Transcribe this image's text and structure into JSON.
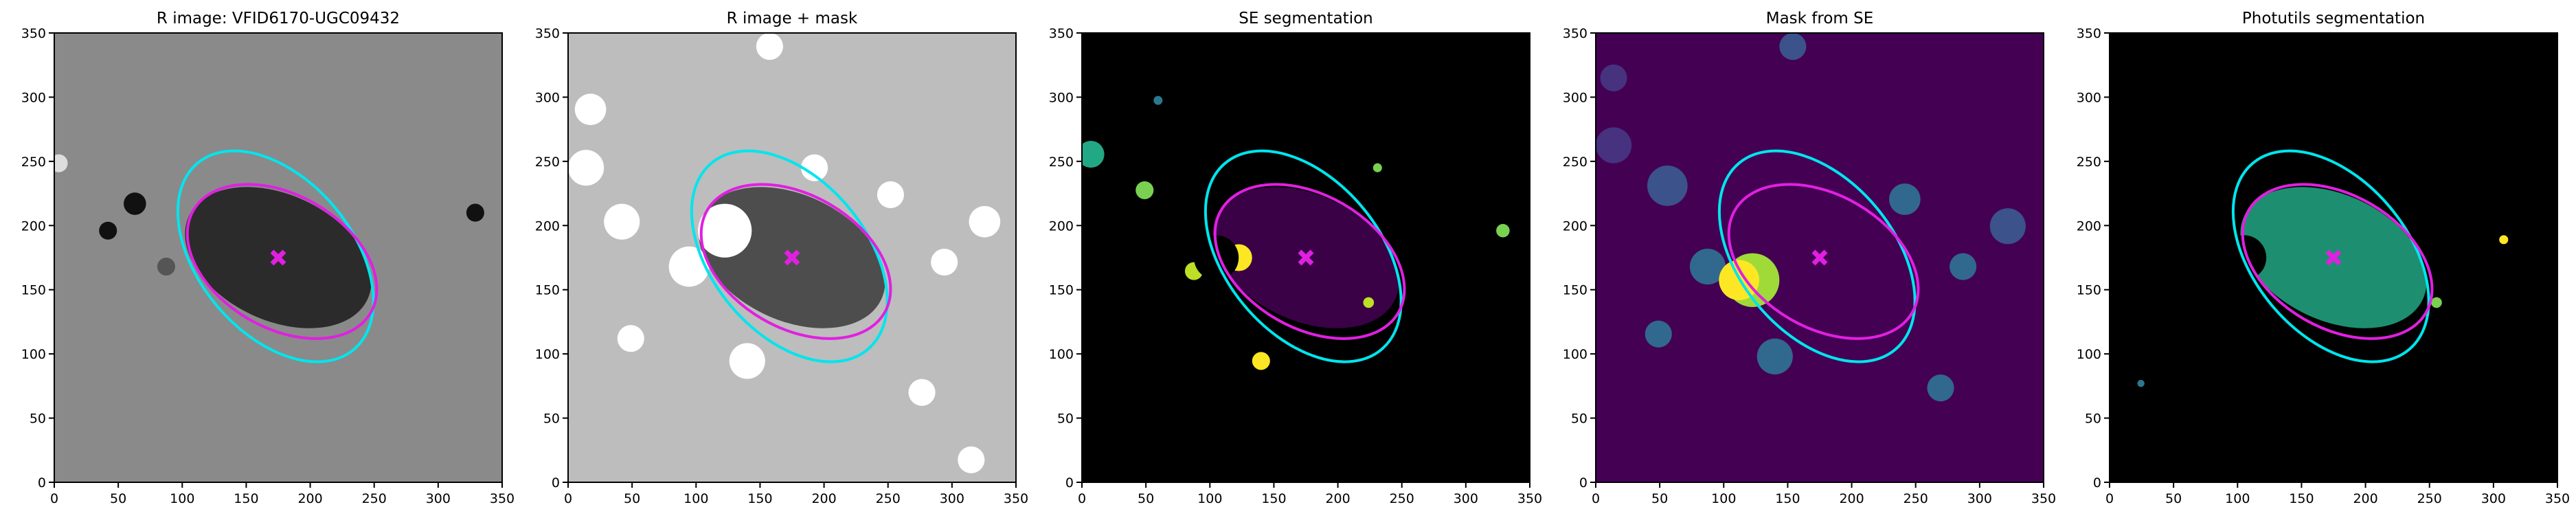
{
  "chart_data": [
    {
      "type": "image",
      "title": "R image: VFID6170-UGC09432",
      "background": "#8a8a8a",
      "galaxy": "#1a1a1a",
      "xlim": [
        0,
        350
      ],
      "ylim": [
        0,
        350
      ],
      "xticks": [
        0,
        50,
        100,
        150,
        200,
        250,
        300,
        350
      ],
      "yticks": [
        0,
        50,
        100,
        150,
        200,
        250,
        300,
        350
      ],
      "ellipses": [
        {
          "color": "#00e5ee",
          "cx": 173,
          "cy": 176,
          "a": 95,
          "b": 60,
          "angle": -50
        },
        {
          "color": "#e020e0",
          "cx": 178,
          "cy": 172,
          "a": 80,
          "b": 52,
          "angle": -30
        }
      ],
      "center": {
        "x": 175,
        "y": 175,
        "color": "#e020e0"
      }
    },
    {
      "type": "image",
      "title": "R image + mask",
      "background": "#bdbdbd",
      "galaxy": "#3a3a3a",
      "xlim": [
        0,
        350
      ],
      "ylim": [
        0,
        350
      ],
      "xticks": [
        0,
        50,
        100,
        150,
        200,
        250,
        300,
        350
      ],
      "yticks": [
        0,
        50,
        100,
        150,
        200,
        250,
        300,
        350
      ],
      "ellipses": [
        {
          "color": "#00e5ee",
          "cx": 173,
          "cy": 176,
          "a": 95,
          "b": 60,
          "angle": -50
        },
        {
          "color": "#e020e0",
          "cx": 178,
          "cy": 172,
          "a": 80,
          "b": 52,
          "angle": -30
        }
      ],
      "center": {
        "x": 175,
        "y": 175,
        "color": "#e020e0"
      }
    },
    {
      "type": "image",
      "title": "SE segmentation",
      "background": "#000000",
      "galaxy": "#440154",
      "xlim": [
        0,
        350
      ],
      "ylim": [
        0,
        350
      ],
      "xticks": [
        0,
        50,
        100,
        150,
        200,
        250,
        300,
        350
      ],
      "yticks": [
        0,
        50,
        100,
        150,
        200,
        250,
        300,
        350
      ],
      "ellipses": [
        {
          "color": "#00e5ee",
          "cx": 173,
          "cy": 176,
          "a": 95,
          "b": 60,
          "angle": -50
        },
        {
          "color": "#e020e0",
          "cx": 178,
          "cy": 172,
          "a": 80,
          "b": 52,
          "angle": -30
        }
      ],
      "center": {
        "x": 175,
        "y": 175,
        "color": "#e020e0"
      }
    },
    {
      "type": "image",
      "title": "Mask from SE",
      "background": "#440154",
      "galaxy": "#440154",
      "xlim": [
        0,
        350
      ],
      "ylim": [
        0,
        350
      ],
      "xticks": [
        0,
        50,
        100,
        150,
        200,
        250,
        300,
        350
      ],
      "yticks": [
        0,
        50,
        100,
        150,
        200,
        250,
        300,
        350
      ],
      "ellipses": [
        {
          "color": "#00e5ee",
          "cx": 173,
          "cy": 176,
          "a": 95,
          "b": 60,
          "angle": -50
        },
        {
          "color": "#e020e0",
          "cx": 178,
          "cy": 172,
          "a": 80,
          "b": 52,
          "angle": -30
        }
      ],
      "center": {
        "x": 175,
        "y": 175,
        "color": "#e020e0"
      }
    },
    {
      "type": "image",
      "title": "Photutils segmentation",
      "background": "#000000",
      "galaxy": "#22a884",
      "xlim": [
        0,
        350
      ],
      "ylim": [
        0,
        350
      ],
      "xticks": [
        0,
        50,
        100,
        150,
        200,
        250,
        300,
        350
      ],
      "yticks": [
        0,
        50,
        100,
        150,
        200,
        250,
        300,
        350
      ],
      "ellipses": [
        {
          "color": "#00e5ee",
          "cx": 173,
          "cy": 176,
          "a": 95,
          "b": 60,
          "angle": -50
        },
        {
          "color": "#e020e0",
          "cx": 178,
          "cy": 172,
          "a": 80,
          "b": 52,
          "angle": -30
        }
      ],
      "center": {
        "x": 175,
        "y": 175,
        "color": "#e020e0"
      }
    }
  ]
}
